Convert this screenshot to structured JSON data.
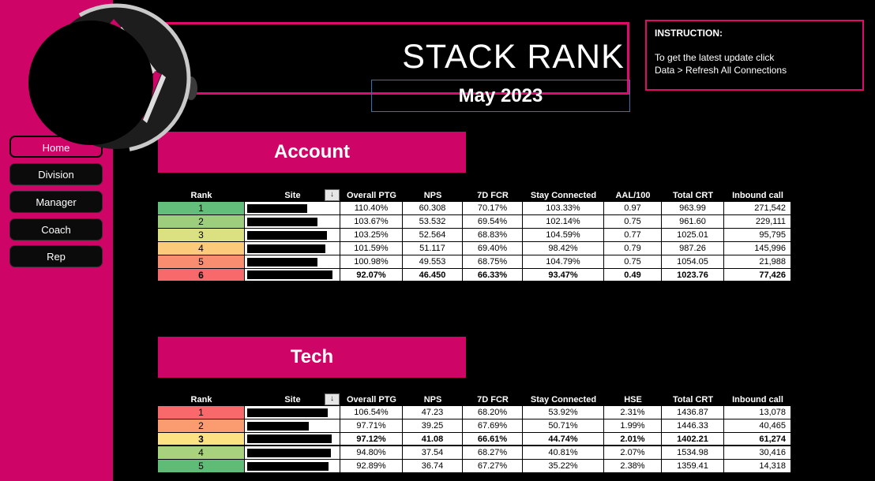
{
  "header": {
    "title": "STACK RANK",
    "period": "May 2023",
    "instruction": {
      "heading": "INSTRUCTION:",
      "line1": "To get the latest update click",
      "line2": "Data > Refresh All Connections"
    }
  },
  "sidebar": {
    "items": [
      {
        "label": "Home",
        "active": true
      },
      {
        "label": "Division",
        "active": false
      },
      {
        "label": "Manager",
        "active": false
      },
      {
        "label": "Coach",
        "active": false
      },
      {
        "label": "Rep",
        "active": false
      }
    ]
  },
  "icons": {
    "sort_descending": "↓"
  },
  "colors": {
    "magenta": "#CE0467",
    "frame_pink": "#DF0A6B",
    "frame_blue": "#2E75B6",
    "scale_green": "#63BE7B",
    "scale_yellow": "#FCE283",
    "scale_red": "#F8696B"
  },
  "tables": [
    {
      "title": "Account",
      "columns": [
        "Rank",
        "Site",
        "Overall PTG",
        "NPS",
        "7D FCR",
        "Stay Connected",
        "AAL/100",
        "Total CRT",
        "Inbound call"
      ],
      "rows": [
        {
          "rank": "1",
          "color": "#63BE7B",
          "bar": 76,
          "bold": false,
          "cells": [
            "110.40%",
            "60.308",
            "70.17%",
            "103.33%",
            "0.97",
            "963.99",
            "271,542"
          ]
        },
        {
          "rank": "2",
          "color": "#9CCE7D",
          "bar": 89,
          "bold": false,
          "cells": [
            "103.67%",
            "53.532",
            "69.54%",
            "102.14%",
            "0.75",
            "961.60",
            "229,111"
          ]
        },
        {
          "rank": "3",
          "color": "#DBE081",
          "bar": 101,
          "bold": false,
          "cells": [
            "103.25%",
            "52.564",
            "68.83%",
            "104.59%",
            "0.77",
            "1025.01",
            "95,795"
          ]
        },
        {
          "rank": "4",
          "color": "#FBCA7B",
          "bar": 99,
          "bold": false,
          "cells": [
            "101.59%",
            "51.117",
            "69.40%",
            "98.42%",
            "0.79",
            "987.26",
            "145,996"
          ]
        },
        {
          "rank": "5",
          "color": "#F98D6F",
          "bar": 89,
          "bold": false,
          "cells": [
            "100.98%",
            "49.553",
            "68.75%",
            "104.79%",
            "0.75",
            "1054.05",
            "21,988"
          ]
        },
        {
          "rank": "6",
          "color": "#F8696B",
          "bar": 108,
          "bold": true,
          "cells": [
            "92.07%",
            "46.450",
            "66.33%",
            "93.47%",
            "0.49",
            "1023.76",
            "77,426"
          ]
        }
      ]
    },
    {
      "title": "Tech",
      "columns": [
        "Rank",
        "Site",
        "Overall PTG",
        "NPS",
        "7D FCR",
        "Stay Connected",
        "HSE",
        "Total CRT",
        "Inbound call"
      ],
      "rows": [
        {
          "rank": "1",
          "color": "#F8696B",
          "bar": 102,
          "bold": false,
          "cells": [
            "106.54%",
            "47.23",
            "68.20%",
            "53.92%",
            "2.31%",
            "1436.87",
            "13,078"
          ]
        },
        {
          "rank": "2",
          "color": "#FA9C70",
          "bar": 78,
          "bold": false,
          "cells": [
            "97.71%",
            "39.25",
            "67.69%",
            "50.71%",
            "1.99%",
            "1446.33",
            "40,465"
          ]
        },
        {
          "rank": "3",
          "color": "#FCE283",
          "bar": 107,
          "bold": true,
          "cells": [
            "97.12%",
            "41.08",
            "66.61%",
            "44.74%",
            "2.01%",
            "1402.21",
            "61,274"
          ]
        },
        {
          "rank": "4",
          "color": "#A9D27F",
          "bar": 106,
          "bold": false,
          "cells": [
            "94.80%",
            "37.54",
            "68.27%",
            "40.81%",
            "2.07%",
            "1534.98",
            "30,416"
          ]
        },
        {
          "rank": "5",
          "color": "#5FBC76",
          "bar": 103,
          "bold": false,
          "cells": [
            "92.89%",
            "36.74",
            "67.27%",
            "35.22%",
            "2.38%",
            "1359.41",
            "14,318"
          ]
        }
      ]
    }
  ]
}
